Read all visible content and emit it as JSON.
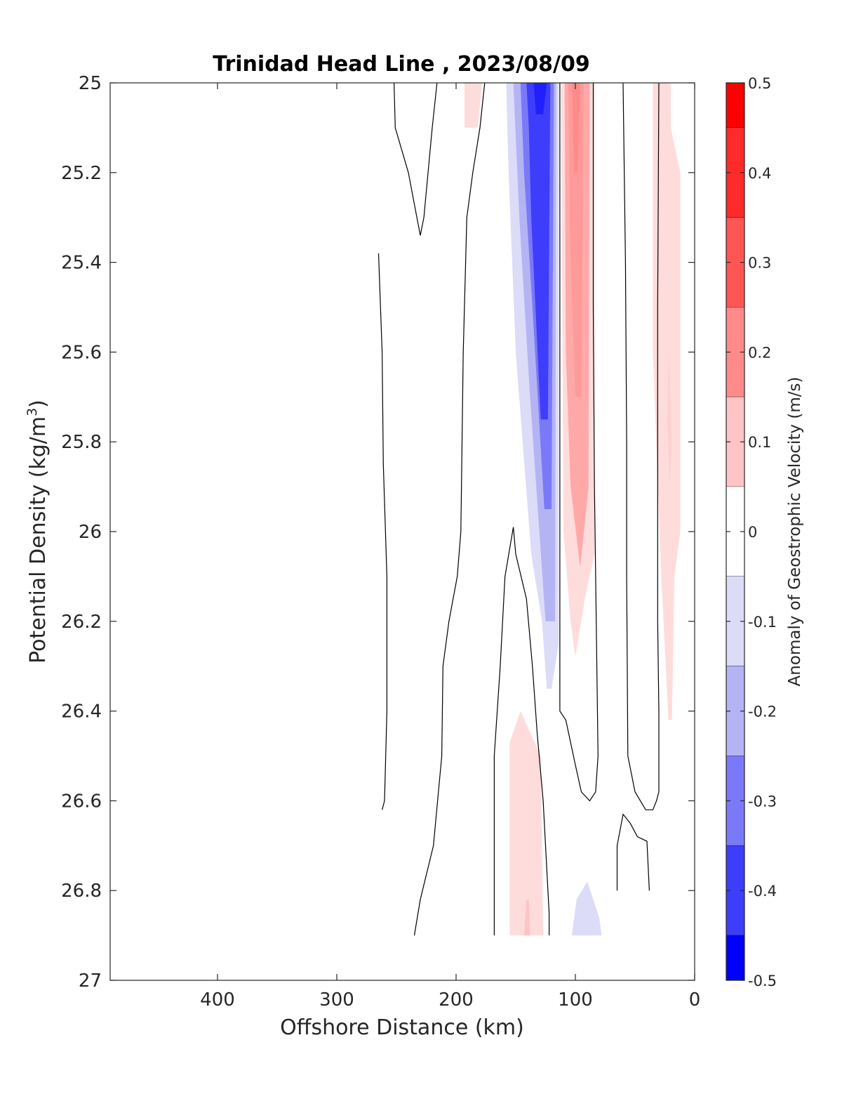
{
  "chart_data": {
    "type": "filled-contour",
    "title": "Trinidad Head Line , 2023/08/09",
    "xlabel": "Offshore Distance (km)",
    "ylabel": "Potential Density (kg/m³)",
    "ylabel_base": "Potential Density (kg/m",
    "ylabel_sup": "3",
    "ylabel_close": ")",
    "xlim": [
      490,
      0
    ],
    "x_reversed": true,
    "ylim": [
      25,
      27
    ],
    "y_reversed": true,
    "xticks": [
      400,
      300,
      200,
      100,
      0
    ],
    "xtick_labels": [
      "400",
      "300",
      "200",
      "100",
      "0"
    ],
    "yticks": [
      25,
      25.2,
      25.4,
      25.6,
      25.8,
      26,
      26.2,
      26.4,
      26.6,
      26.8,
      27
    ],
    "ytick_labels": [
      "25",
      "25.2",
      "25.4",
      "25.6",
      "25.8",
      "26",
      "26.2",
      "26.4",
      "26.6",
      "26.8",
      "27"
    ],
    "colorbar": {
      "label": "Anomaly of Geostrophic Velocity (m/s)",
      "range": [
        -0.5,
        0.5
      ],
      "tick_values": [
        0.5,
        0.4,
        0.3,
        0.2,
        0.1,
        0,
        -0.1,
        -0.2,
        -0.3,
        -0.4,
        -0.5
      ],
      "tick_labels": [
        "0.5",
        "0.4",
        "0.3",
        "0.2",
        "0.1",
        "0",
        "-0.1",
        "-0.2",
        "-0.3",
        "-0.4",
        "-0.5"
      ],
      "levels": [
        {
          "from": 0.45,
          "to": 0.5,
          "color": "#ff0000"
        },
        {
          "from": 0.35,
          "to": 0.45,
          "color": "#ff2a2a"
        },
        {
          "from": 0.25,
          "to": 0.35,
          "color": "#ff5555"
        },
        {
          "from": 0.15,
          "to": 0.25,
          "color": "#ff8a8a"
        },
        {
          "from": 0.05,
          "to": 0.15,
          "color": "#ffc4c4"
        },
        {
          "from": -0.05,
          "to": 0.05,
          "color": "#ffffff"
        },
        {
          "from": -0.15,
          "to": -0.05,
          "color": "#dcdcf8"
        },
        {
          "from": -0.25,
          "to": -0.15,
          "color": "#b4b4f5"
        },
        {
          "from": -0.35,
          "to": -0.25,
          "color": "#7a7af8"
        },
        {
          "from": -0.45,
          "to": -0.35,
          "color": "#3d3dfb"
        },
        {
          "from": -0.5,
          "to": -0.45,
          "color": "#0000ff"
        }
      ]
    },
    "filled_regions": [
      {
        "level": 0.1,
        "color": "#ffdcdc",
        "points": [
          [
            193,
            25
          ],
          [
            178,
            25
          ],
          [
            182,
            25.1
          ],
          [
            193,
            25.1
          ]
        ]
      },
      {
        "level": -0.1,
        "color": "#dcdcf8",
        "points": [
          [
            158,
            25
          ],
          [
            114,
            25
          ],
          [
            114,
            26.25
          ],
          [
            120,
            26.35
          ],
          [
            124,
            26.35
          ],
          [
            128,
            26.2
          ],
          [
            137,
            26.05
          ],
          [
            150,
            25.6
          ],
          [
            156,
            25.2
          ]
        ]
      },
      {
        "level": -0.2,
        "color": "#b4b4f5",
        "points": [
          [
            152,
            25
          ],
          [
            116,
            25
          ],
          [
            117,
            26.2
          ],
          [
            125,
            26.2
          ],
          [
            138,
            25.7
          ],
          [
            147,
            25.3
          ]
        ]
      },
      {
        "level": -0.3,
        "color": "#7a7af8",
        "points": [
          [
            146,
            25
          ],
          [
            118,
            25
          ],
          [
            120,
            25.95
          ],
          [
            126,
            25.95
          ],
          [
            136,
            25.5
          ],
          [
            143,
            25.2
          ]
        ]
      },
      {
        "level": -0.4,
        "color": "#3d3dfb",
        "points": [
          [
            141,
            25
          ],
          [
            121,
            25
          ],
          [
            123,
            25.75
          ],
          [
            129,
            25.75
          ],
          [
            137,
            25.3
          ],
          [
            139,
            25.1
          ]
        ]
      },
      {
        "level": -0.45,
        "color": "#2020fc",
        "points": [
          [
            135,
            25
          ],
          [
            124,
            25
          ],
          [
            127,
            25.07
          ],
          [
            133,
            25.07
          ]
        ]
      },
      {
        "level": 0.1,
        "color": "#ffdcdc",
        "points": [
          [
            112,
            25
          ],
          [
            84,
            25
          ],
          [
            84,
            26.05
          ],
          [
            92,
            26.15
          ],
          [
            100,
            26.28
          ],
          [
            104,
            26.2
          ],
          [
            110,
            26.0
          ]
        ]
      },
      {
        "level": 0.2,
        "color": "#ffa8a8",
        "points": [
          [
            109,
            25
          ],
          [
            88,
            25
          ],
          [
            89,
            25.9
          ],
          [
            96,
            26.08
          ],
          [
            104,
            25.9
          ],
          [
            108,
            25.6
          ]
        ]
      },
      {
        "level": 0.2,
        "color": "#ff9a9a",
        "points": [
          [
            106,
            25
          ],
          [
            93,
            25
          ],
          [
            95,
            25.7
          ],
          [
            100,
            25.7
          ],
          [
            104,
            25.4
          ]
        ]
      },
      {
        "level": 0.25,
        "color": "#ff8a8a",
        "points": [
          [
            103,
            25
          ],
          [
            96,
            25
          ],
          [
            98,
            25.2
          ],
          [
            101,
            25.2
          ]
        ]
      },
      {
        "level": 0.1,
        "color": "#ffdcdc",
        "points": [
          [
            35,
            25
          ],
          [
            20,
            25
          ],
          [
            20,
            25.1
          ],
          [
            12,
            25.2
          ],
          [
            12,
            26
          ],
          [
            17,
            26.1
          ],
          [
            19,
            26.42
          ],
          [
            22,
            26.42
          ],
          [
            28,
            26.1
          ],
          [
            35,
            25.6
          ]
        ]
      },
      {
        "level": 0.1,
        "color": "#ffd0d0",
        "points": [
          [
            22,
            25.6
          ],
          [
            19,
            25.8
          ],
          [
            21,
            25.9
          ],
          [
            23,
            25.75
          ]
        ]
      },
      {
        "level": 0.1,
        "color": "#ffdcdc",
        "points": [
          [
            155,
            26.9
          ],
          [
            155,
            26.47
          ],
          [
            146,
            26.4
          ],
          [
            129,
            26.5
          ],
          [
            127,
            26.9
          ]
        ]
      },
      {
        "level": 0.1,
        "color": "#ffc4c4",
        "points": [
          [
            143,
            26.9
          ],
          [
            141,
            26.82
          ],
          [
            139,
            26.82
          ],
          [
            138,
            26.9
          ]
        ]
      },
      {
        "level": -0.1,
        "color": "#dcdcf8",
        "points": [
          [
            103,
            26.9
          ],
          [
            99,
            26.82
          ],
          [
            90,
            26.78
          ],
          [
            80,
            26.86
          ],
          [
            78,
            26.9
          ]
        ]
      }
    ],
    "contour_lines": [
      [
        [
          252,
          25
        ],
        [
          251,
          25.1
        ],
        [
          240,
          25.2
        ],
        [
          230,
          25.34
        ],
        [
          227,
          25.3
        ],
        [
          220,
          25.1
        ],
        [
          216,
          25
        ]
      ],
      [
        [
          265,
          25.38
        ],
        [
          262,
          25.6
        ],
        [
          261,
          25.85
        ],
        [
          258,
          26.1
        ],
        [
          258,
          26.4
        ],
        [
          260,
          26.6
        ],
        [
          262,
          26.62
        ]
      ],
      [
        [
          176,
          25
        ],
        [
          180,
          25.1
        ],
        [
          186,
          25.2
        ],
        [
          191,
          25.3
        ],
        [
          194,
          25.6
        ],
        [
          196,
          26
        ],
        [
          199,
          26.1
        ],
        [
          206,
          26.2
        ],
        [
          211,
          26.3
        ],
        [
          212,
          26.5
        ],
        [
          219,
          26.7
        ],
        [
          230,
          26.82
        ],
        [
          235,
          26.9
        ]
      ],
      [
        [
          168,
          26.9
        ],
        [
          168,
          26.5
        ],
        [
          163,
          26.3
        ],
        [
          159,
          26.1
        ],
        [
          152,
          25.99
        ],
        [
          150,
          26.05
        ],
        [
          141,
          26.15
        ],
        [
          136,
          26.3
        ],
        [
          132,
          26.45
        ],
        [
          127,
          26.6
        ],
        [
          122,
          26.85
        ],
        [
          122,
          26.9
        ]
      ],
      [
        [
          113,
          25
        ],
        [
          113,
          26
        ],
        [
          113,
          26.4
        ],
        [
          108,
          26.42
        ],
        [
          100,
          26.52
        ],
        [
          95,
          26.58
        ],
        [
          88,
          26.6
        ],
        [
          83,
          26.58
        ],
        [
          81,
          26.5
        ],
        [
          82,
          26.3
        ],
        [
          83,
          26.1
        ],
        [
          84,
          25.9
        ],
        [
          85,
          25.5
        ],
        [
          85,
          25
        ]
      ],
      [
        [
          60,
          25
        ],
        [
          58,
          25.4
        ],
        [
          57,
          25.8
        ],
        [
          57,
          26.1
        ],
        [
          56,
          26.5
        ],
        [
          50,
          26.58
        ],
        [
          41,
          26.62
        ],
        [
          35,
          26.62
        ],
        [
          32,
          26.6
        ],
        [
          30,
          26.58
        ],
        [
          30,
          26.4
        ],
        [
          31,
          26.2
        ],
        [
          31,
          25.9
        ],
        [
          31,
          25.5
        ],
        [
          30,
          25
        ]
      ],
      [
        [
          65,
          26.8
        ],
        [
          65,
          26.7
        ],
        [
          60,
          26.63
        ],
        [
          54,
          26.65
        ],
        [
          48,
          26.68
        ],
        [
          40,
          26.69
        ],
        [
          38,
          26.8
        ]
      ]
    ]
  }
}
